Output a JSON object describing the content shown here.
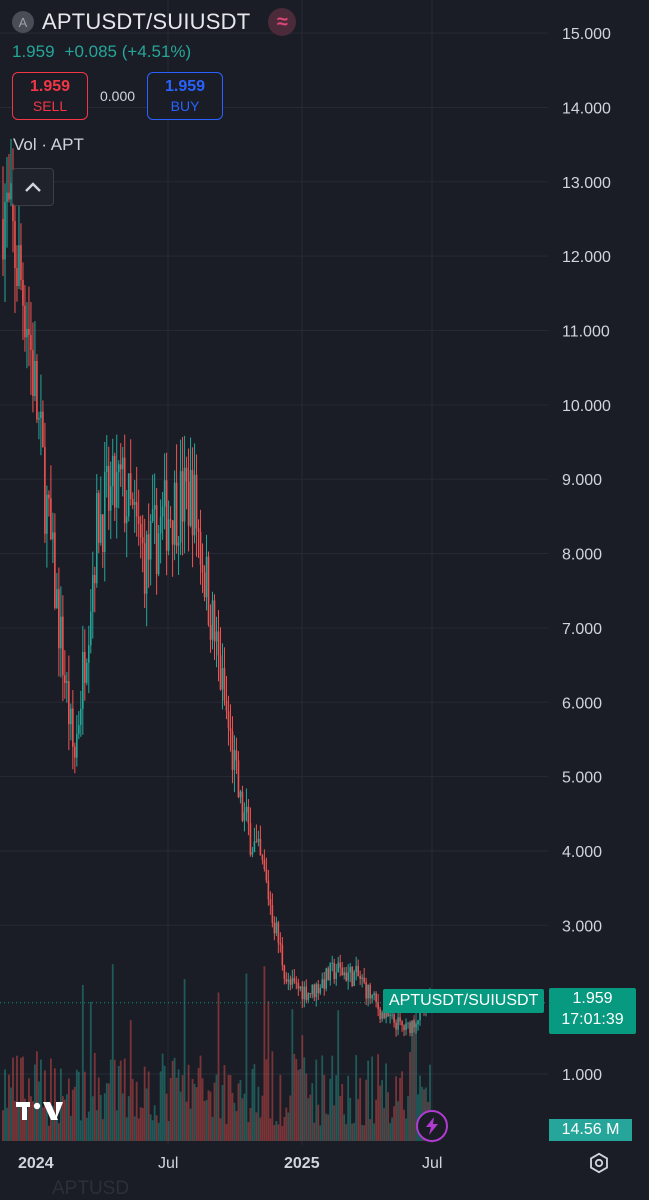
{
  "header": {
    "symbol_logo": "A",
    "symbol": "APTUSDT/SUIUSDT",
    "last_price": "1.959",
    "change": "+0.085 (+4.51%)",
    "wave_icon": "wave-icon"
  },
  "trade": {
    "sell_price": "1.959",
    "sell_label": "SELL",
    "spread": "0.000",
    "buy_price": "1.959",
    "buy_label": "BUY"
  },
  "indicator": {
    "vol_label": "Vol · APT"
  },
  "price_axis": {
    "ticks": [
      "15.000",
      "14.000",
      "13.000",
      "12.000",
      "11.000",
      "10.000",
      "9.000",
      "8.000",
      "7.000",
      "6.000",
      "5.000",
      "4.000",
      "3.000",
      "1.000"
    ]
  },
  "time_axis": {
    "ticks": [
      "2024",
      "Jul",
      "2025",
      "Jul"
    ]
  },
  "tags": {
    "symbol": "APTUSDT/SUIUSDT",
    "price": "1.959",
    "countdown": "17:01:39",
    "volume": "14.56 M"
  },
  "ghost_text": "APTUSD",
  "colors": {
    "up": "#26a69a",
    "down": "#ef5350",
    "background": "#1a1d25",
    "sell": "#f23645",
    "buy": "#2962ff",
    "last": "#089981"
  },
  "chart_data": {
    "type": "candlestick",
    "symbol": "APTUSDT/SUIUSDT",
    "ylim": [
      0.0,
      15.4
    ],
    "x_range": [
      "2023-12",
      "2025-07"
    ],
    "last_price": 1.959,
    "approx_series": [
      {
        "t": "2023-12",
        "close": 12.8
      },
      {
        "t": "2024-01",
        "close": 11.3
      },
      {
        "t": "2024-02",
        "close": 8.1
      },
      {
        "t": "2024-03",
        "close": 5.2
      },
      {
        "t": "2024-04",
        "close": 8.5
      },
      {
        "t": "2024-05",
        "close": 8.9
      },
      {
        "t": "2024-06",
        "close": 7.9
      },
      {
        "t": "2024-07",
        "close": 8.6
      },
      {
        "t": "2024-08",
        "close": 8.8
      },
      {
        "t": "2024-09",
        "close": 6.7
      },
      {
        "t": "2024-10",
        "close": 4.6
      },
      {
        "t": "2024-11",
        "close": 3.7
      },
      {
        "t": "2024-12",
        "close": 2.2
      },
      {
        "t": "2025-01",
        "close": 2.1
      },
      {
        "t": "2025-02",
        "close": 2.4
      },
      {
        "t": "2025-03",
        "close": 2.3
      },
      {
        "t": "2025-04",
        "close": 1.8
      },
      {
        "t": "2025-05",
        "close": 1.6
      },
      {
        "t": "2025-06",
        "close": 1.96
      }
    ],
    "volume_last": "14.56 M"
  }
}
